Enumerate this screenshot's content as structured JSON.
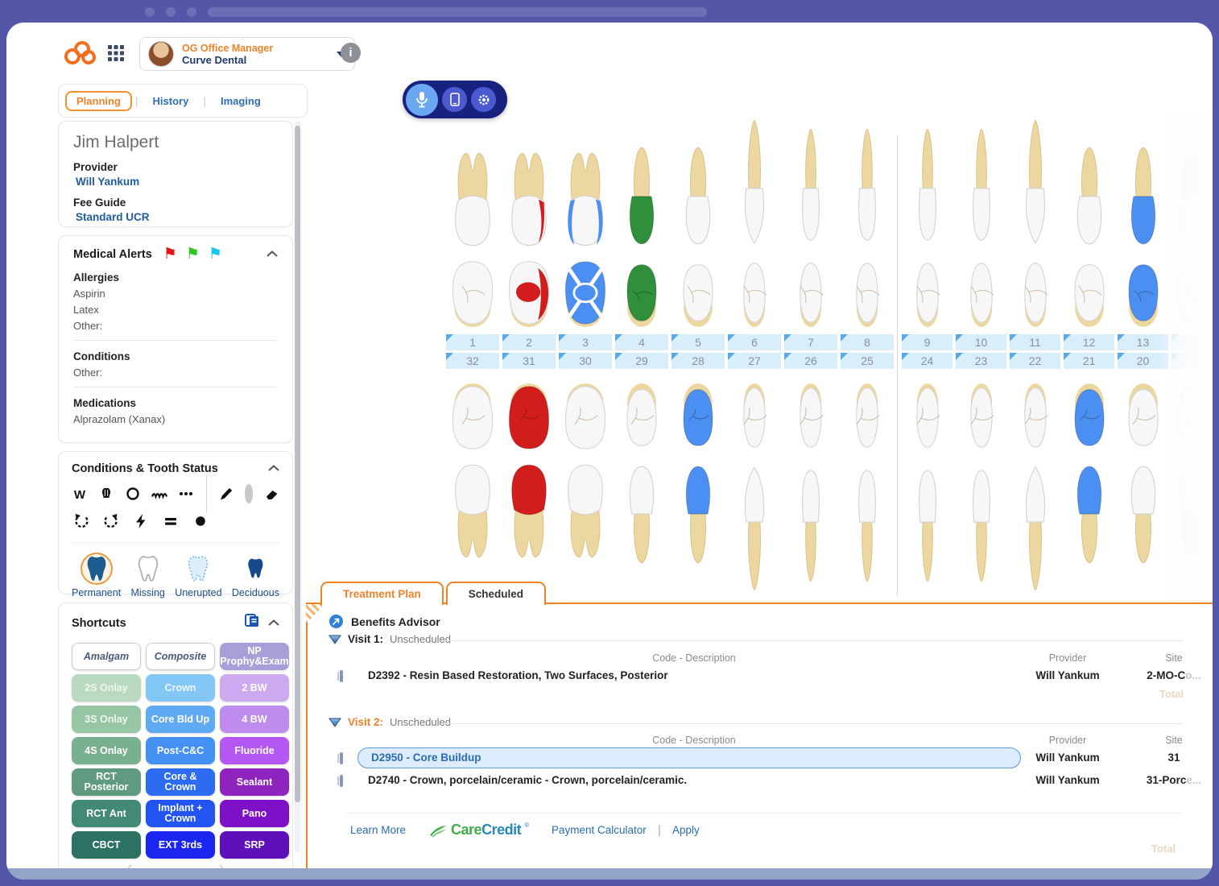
{
  "header": {
    "user_role": "OG Office Manager",
    "user_org": "Curve Dental",
    "logo_icon": "curve-loops-logo",
    "apps_icon": "app-grid-icon",
    "info_icon": "info-icon"
  },
  "nav_tabs": [
    {
      "label": "Planning",
      "active": true
    },
    {
      "label": "History",
      "active": false
    },
    {
      "label": "Imaging",
      "active": false
    }
  ],
  "patient": {
    "name": "Jim Halpert",
    "provider_label": "Provider",
    "provider": "Will Yankum",
    "fee_guide_label": "Fee Guide",
    "fee_guide": "Standard UCR"
  },
  "medical_alerts": {
    "title": "Medical Alerts",
    "flag_colors": [
      "#e41414",
      "#2fc621",
      "#16c6f2"
    ],
    "sections": [
      {
        "heading": "Allergies",
        "items": [
          "Aspirin",
          "Latex",
          "Other:"
        ]
      },
      {
        "heading": "Conditions",
        "items": [
          "Other:"
        ]
      },
      {
        "heading": "Medications",
        "items": [
          "Alprazolam (Xanax)"
        ]
      }
    ]
  },
  "tooth_status_panel": {
    "title": "Conditions & Tooth Status",
    "toolbar_row1": [
      "letter-w-icon",
      "crown-icon",
      "circle-icon",
      "zigzag-icon",
      "ellipsis-icon",
      "divider",
      "pencil-icon",
      "color-swatch",
      "eraser-icon"
    ],
    "toolbar_row2": [
      "rotate-left-icon",
      "rotate-right-icon",
      "lightning-icon",
      "equals-icon",
      "dot-icon"
    ],
    "legend": [
      {
        "label": "Permanent",
        "selected": true,
        "fill": "#1d5c90"
      },
      {
        "label": "Missing",
        "selected": false,
        "fill": "#ffffff"
      },
      {
        "label": "Unerupted",
        "selected": false,
        "fill": "#ddeefb"
      },
      {
        "label": "Deciduous",
        "selected": false,
        "fill": "#164a8c"
      }
    ]
  },
  "shortcuts": {
    "title": "Shortcuts",
    "header_icon": "notes-copy-icon",
    "buttons": [
      {
        "label": "Amalgam",
        "bg": "#ffffff",
        "fg": "#4a5a7a",
        "italic": true,
        "border": "#c6ccd6"
      },
      {
        "label": "Composite",
        "bg": "#ffffff",
        "fg": "#4a5a7a",
        "italic": true,
        "border": "#c6ccd6"
      },
      {
        "label": "NP Prophy&Exam",
        "bg": "#a89fd9",
        "fg": "#ffffff"
      },
      {
        "label": "2S Onlay",
        "bg": "#b9d9c0",
        "fg": "#eef7f0"
      },
      {
        "label": "Crown",
        "bg": "#82c7f5",
        "fg": "#f0f8ff"
      },
      {
        "label": "2 BW",
        "bg": "#cda9ef",
        "fg": "#ffffff"
      },
      {
        "label": "3S Onlay",
        "bg": "#97c6a4",
        "fg": "#eef7f0"
      },
      {
        "label": "Core Bld Up",
        "bg": "#60a9f3",
        "fg": "#ffffff"
      },
      {
        "label": "4 BW",
        "bg": "#bd8cec",
        "fg": "#ffffff"
      },
      {
        "label": "4S Onlay",
        "bg": "#79b08f",
        "fg": "#ffffff"
      },
      {
        "label": "Post-C&C",
        "bg": "#4491f3",
        "fg": "#ffffff"
      },
      {
        "label": "Fluoride",
        "bg": "#b557f3",
        "fg": "#ffffff"
      },
      {
        "label": "RCT Posterior",
        "bg": "#609a81",
        "fg": "#ffffff"
      },
      {
        "label": "Core & Crown",
        "bg": "#2d6cf1",
        "fg": "#ffffff"
      },
      {
        "label": "Sealant",
        "bg": "#8e24bd",
        "fg": "#ffffff"
      },
      {
        "label": "RCT Ant",
        "bg": "#428a75",
        "fg": "#ffffff"
      },
      {
        "label": "Implant + Crown",
        "bg": "#2254f3",
        "fg": "#ffffff"
      },
      {
        "label": "Pano",
        "bg": "#7e10c8",
        "fg": "#ffffff"
      },
      {
        "label": "CBCT",
        "bg": "#2c7263",
        "fg": "#ffffff"
      },
      {
        "label": "EXT 3rds",
        "bg": "#1b26f0",
        "fg": "#ffffff"
      },
      {
        "label": "SRP",
        "bg": "#5e10ba",
        "fg": "#ffffff"
      }
    ]
  },
  "voice_toolbar": {
    "icons": [
      "microphone-icon",
      "tablet-icon",
      "gear-icon"
    ]
  },
  "chart": {
    "status_colors": {
      "red": "#d31d1d",
      "blue": "#4b8ff2",
      "green": "#2f8f3b",
      "mo-red": "#ffffff",
      "crown-blue": "#ffffff"
    },
    "enamel": "#f7f7f8",
    "root": "#ecd7a0",
    "columns": [
      {
        "upper": "1",
        "lower": "32",
        "upper_type": "molar",
        "lower_type": "molar",
        "upper_status": null,
        "lower_status": null
      },
      {
        "upper": "2",
        "lower": "31",
        "upper_type": "molar",
        "lower_type": "molar",
        "upper_status": "mo-red",
        "lower_status": "red"
      },
      {
        "upper": "3",
        "lower": "30",
        "upper_type": "molar",
        "lower_type": "molar",
        "upper_status": "crown-blue",
        "lower_status": null
      },
      {
        "upper": "4",
        "lower": "29",
        "upper_type": "premolar",
        "lower_type": "premolar",
        "upper_status": "green",
        "lower_status": null
      },
      {
        "upper": "5",
        "lower": "28",
        "upper_type": "premolar",
        "lower_type": "premolar",
        "upper_status": null,
        "lower_status": "blue"
      },
      {
        "upper": "6",
        "lower": "27",
        "upper_type": "canine",
        "lower_type": "canine",
        "upper_status": null,
        "lower_status": null
      },
      {
        "upper": "7",
        "lower": "26",
        "upper_type": "incisor",
        "lower_type": "incisor",
        "upper_status": null,
        "lower_status": null
      },
      {
        "upper": "8",
        "lower": "25",
        "upper_type": "incisor",
        "lower_type": "incisor",
        "upper_status": null,
        "lower_status": null
      },
      {
        "upper": "9",
        "lower": "24",
        "upper_type": "incisor",
        "lower_type": "incisor",
        "upper_status": null,
        "lower_status": null
      },
      {
        "upper": "10",
        "lower": "23",
        "upper_type": "incisor",
        "lower_type": "incisor",
        "upper_status": null,
        "lower_status": null
      },
      {
        "upper": "11",
        "lower": "22",
        "upper_type": "canine",
        "lower_type": "canine",
        "upper_status": null,
        "lower_status": null
      },
      {
        "upper": "12",
        "lower": "21",
        "upper_type": "premolar",
        "lower_type": "premolar",
        "upper_status": null,
        "lower_status": "blue"
      },
      {
        "upper": "13",
        "lower": "20",
        "upper_type": "premolar",
        "lower_type": "premolar",
        "upper_status": "blue",
        "lower_status": null
      },
      {
        "upper": "",
        "lower": "",
        "upper_type": "molar",
        "lower_type": "molar",
        "upper_status": null,
        "lower_status": null,
        "ghost": true
      }
    ]
  },
  "treatment": {
    "tabs": [
      {
        "label": "Treatment Plan",
        "active": true
      },
      {
        "label": "Scheduled",
        "active": false
      }
    ],
    "benefits_advisor": "Benefits Advisor",
    "benefits_icon": "benefits-advisor-icon",
    "headers": {
      "code": "Code - Description",
      "provider": "Provider",
      "site": "Site"
    },
    "visits": [
      {
        "name": "Visit 1:",
        "status": "Unscheduled",
        "orange": false,
        "rows": [
          {
            "code": "D2392 - Resin Based Restoration, Two Surfaces, Posterior",
            "provider": "Will Yankum",
            "site": "2-MO-C",
            "site_ghost": "o...",
            "highlight": false
          }
        ]
      },
      {
        "name": "Visit 2:",
        "status": "Unscheduled",
        "orange": true,
        "rows": [
          {
            "code": "D2950 - Core Buildup",
            "provider": "Will Yankum",
            "site": "31",
            "site_ghost": "",
            "highlight": true
          },
          {
            "code": "D2740 - Crown, porcelain/ceramic - Crown, porcelain/ceramic.",
            "provider": "Will Yankum",
            "site": "31-Porc",
            "site_ghost": "e...",
            "highlight": false
          }
        ]
      }
    ],
    "ghost_total": "Total",
    "footer": {
      "learn_more": "Learn More",
      "brand_care": "Care",
      "brand_credit": "Credit",
      "brand_tm": "®",
      "payment_calculator": "Payment Calculator",
      "apply": "Apply"
    }
  },
  "accent_colors": {
    "orange": "#ef8225",
    "link_blue": "#2b6cb0",
    "frame_purple": "#5457a8"
  }
}
